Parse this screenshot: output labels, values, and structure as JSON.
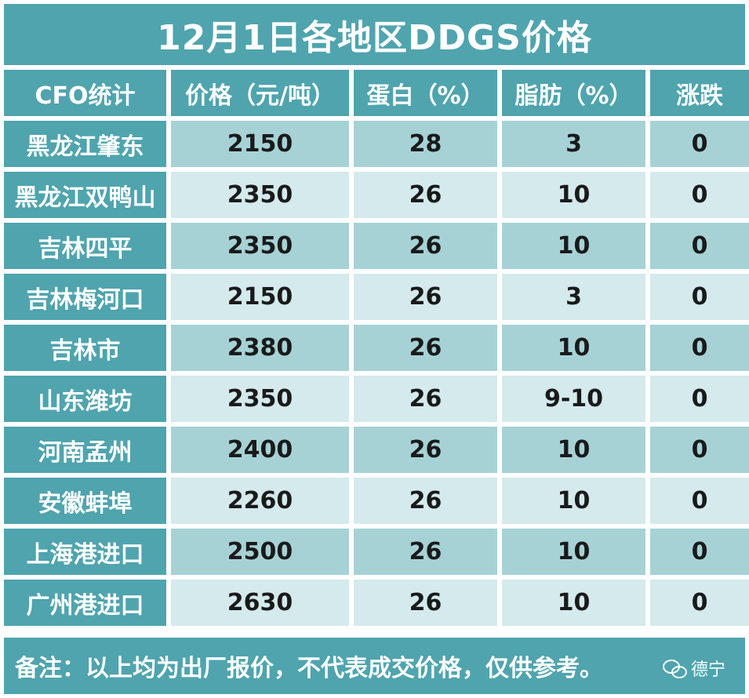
{
  "title": "12月1日各地区DDGS价格",
  "headers": [
    "CFO统计",
    "价格（元/吨）",
    "蛋白（%）",
    "脂肪（%）",
    "涨跌"
  ],
  "rows": [
    {
      "region": "黑龙江肇东",
      "price": "2150",
      "protein": "28",
      "fat": "3",
      "change": "0"
    },
    {
      "region": "黑龙江双鸭山",
      "price": "2350",
      "protein": "26",
      "fat": "10",
      "change": "0"
    },
    {
      "region": "吉林四平",
      "price": "2350",
      "protein": "26",
      "fat": "10",
      "change": "0"
    },
    {
      "region": "吉林梅河口",
      "price": "2150",
      "protein": "26",
      "fat": "3",
      "change": "0"
    },
    {
      "region": "吉林市",
      "price": "2380",
      "protein": "26",
      "fat": "10",
      "change": "0"
    },
    {
      "region": "山东潍坊",
      "price": "2350",
      "protein": "26",
      "fat": "9-10",
      "change": "0"
    },
    {
      "region": "河南孟州",
      "price": "2400",
      "protein": "26",
      "fat": "10",
      "change": "0"
    },
    {
      "region": "安徽蚌埠",
      "price": "2260",
      "protein": "26",
      "fat": "10",
      "change": "0"
    },
    {
      "region": "上海港进口",
      "price": "2500",
      "protein": "26",
      "fat": "10",
      "change": "0"
    },
    {
      "region": "广州港进口",
      "price": "2630",
      "protein": "26",
      "fat": "10",
      "change": "0"
    }
  ],
  "note": "备注：以上均为出厂报价，不代表成交价格，仅供参考。",
  "watermark": "德宁",
  "watermark_icon": "wechat-icon",
  "colors": {
    "header_bg": "#4fa4ae",
    "row_dark": "#a6d2d6",
    "row_light": "#d4eaec",
    "header_text": "#ffffff",
    "value_text": "#1a1a1a"
  }
}
